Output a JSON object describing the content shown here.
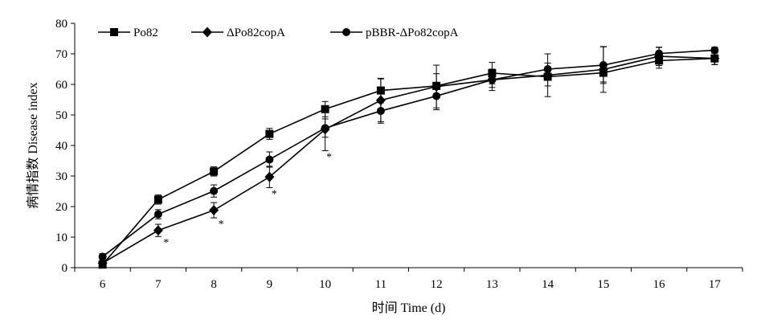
{
  "chart_data": {
    "type": "line",
    "title": "",
    "xlabel": "时间 Time (d)",
    "ylabel": "病情指数 Disease index",
    "xlim": [
      5.5,
      17.5
    ],
    "ylim": [
      0,
      80
    ],
    "x_ticks": [
      6,
      7,
      8,
      9,
      10,
      11,
      12,
      13,
      14,
      15,
      16,
      17
    ],
    "y_ticks": [
      0,
      10,
      20,
      30,
      40,
      50,
      60,
      70,
      80
    ],
    "grid": false,
    "legend_position": "top",
    "x": [
      6,
      7,
      8,
      9,
      10,
      11,
      12,
      13,
      14,
      15,
      16,
      17
    ],
    "series": [
      {
        "name": "Po82",
        "marker": "square",
        "values": [
          1.0,
          22.3,
          31.5,
          43.8,
          51.9,
          58.0,
          59.5,
          63.7,
          62.5,
          63.8,
          67.8,
          68.5
        ],
        "errors": [
          0.8,
          1.5,
          1.5,
          1.8,
          2.5,
          4.0,
          4.0,
          3.5,
          3.0,
          3.0,
          2.5,
          2.0
        ]
      },
      {
        "name": "ΔPo82copA",
        "marker": "diamond",
        "values": [
          1.5,
          12.2,
          18.8,
          29.7,
          45.3,
          54.8,
          59.3,
          61.5,
          63.0,
          64.9,
          69.2,
          68.5
        ],
        "errors": [
          0.8,
          2.0,
          2.5,
          3.5,
          7.0,
          7.0,
          7.0,
          2.5,
          7.0,
          7.5,
          3.0,
          2.0
        ]
      },
      {
        "name": "pBBR-ΔPo82copA",
        "marker": "circle",
        "values": [
          3.6,
          17.5,
          25.1,
          35.4,
          45.7,
          51.3,
          56.2,
          61.5,
          65.0,
          66.3,
          70.1,
          71.2
        ],
        "errors": [
          1.0,
          1.5,
          2.0,
          2.5,
          3.0,
          4.0,
          4.5,
          3.5,
          2.0,
          6.0,
          2.0,
          1.0
        ]
      }
    ],
    "annotations": [
      {
        "text": "*",
        "x": 7,
        "near_series": "ΔPo82copA"
      },
      {
        "text": "*",
        "x": 8,
        "near_series": "ΔPo82copA"
      },
      {
        "text": "*",
        "x": 9,
        "near_series": "ΔPo82copA"
      },
      {
        "text": "*",
        "x": 10,
        "near_series": "ΔPo82copA"
      }
    ]
  }
}
